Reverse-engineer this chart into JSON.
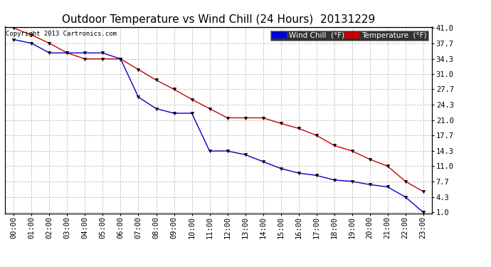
{
  "title": "Outdoor Temperature vs Wind Chill (24 Hours)  20131229",
  "copyright": "Copyright 2013 Cartronics.com",
  "x_labels": [
    "00:00",
    "01:00",
    "02:00",
    "03:00",
    "04:00",
    "05:00",
    "06:00",
    "07:00",
    "08:00",
    "09:00",
    "10:00",
    "11:00",
    "12:00",
    "13:00",
    "14:00",
    "15:00",
    "16:00",
    "17:00",
    "18:00",
    "19:00",
    "20:00",
    "21:00",
    "22:00",
    "23:00"
  ],
  "y_ticks": [
    1.0,
    4.3,
    7.7,
    11.0,
    14.3,
    17.7,
    21.0,
    24.3,
    27.7,
    31.0,
    34.3,
    37.7,
    41.0
  ],
  "temperature": [
    41.0,
    39.5,
    37.7,
    35.6,
    34.3,
    34.3,
    34.3,
    32.0,
    29.7,
    27.7,
    25.5,
    23.5,
    21.5,
    21.5,
    21.5,
    20.3,
    19.2,
    17.7,
    15.5,
    14.3,
    12.5,
    11.0,
    7.7,
    5.5
  ],
  "wind_chill": [
    38.5,
    37.7,
    35.6,
    35.6,
    35.6,
    35.6,
    34.3,
    26.0,
    23.5,
    22.5,
    22.5,
    14.3,
    14.3,
    13.5,
    12.0,
    10.5,
    9.5,
    9.0,
    8.0,
    7.7,
    7.0,
    6.5,
    4.3,
    1.0
  ],
  "temp_color": "#cc0000",
  "wind_chill_color": "#0000cc",
  "background_color": "#ffffff",
  "grid_color": "#b0b0b0",
  "legend_wind_chill_bg": "#0000dd",
  "legend_temp_bg": "#cc0000",
  "title_fontsize": 11,
  "tick_fontsize": 7.5,
  "legend_fontsize": 7.5,
  "copyright_fontsize": 6.5
}
